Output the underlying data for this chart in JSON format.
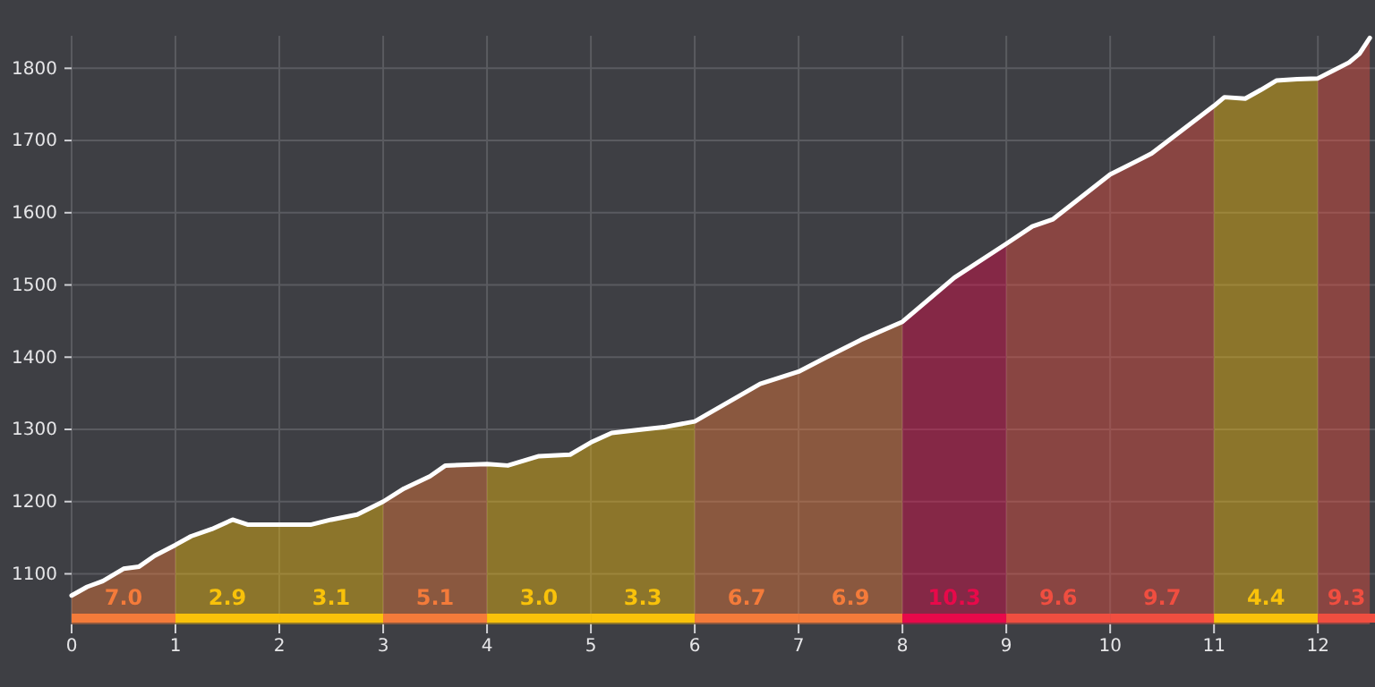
{
  "chart_data": {
    "type": "line",
    "x": [
      0,
      0.15,
      0.3,
      0.5,
      0.65,
      0.8,
      1,
      1.15,
      1.35,
      1.55,
      1.7,
      2,
      2.3,
      2.5,
      2.75,
      3,
      3.2,
      3.45,
      3.6,
      4,
      4.2,
      4.5,
      4.8,
      5,
      5.2,
      5.5,
      5.7,
      6,
      6.63,
      7,
      7.27,
      7.6,
      8,
      8.5,
      9,
      9.25,
      9.45,
      10,
      10.4,
      11,
      11.1,
      11.3,
      11.45,
      11.6,
      11.8,
      12,
      12.15,
      12.3,
      12.4,
      12.5
    ],
    "series": [
      {
        "color": "#ffffff",
        "values": [
          1070,
          1082,
          1090,
          1107,
          1110,
          1125,
          1140,
          1152,
          1162,
          1175,
          1168,
          1168,
          1168,
          1175,
          1182,
          1200,
          1218,
          1235,
          1250,
          1252,
          1250,
          1263,
          1265,
          1282,
          1295,
          1300,
          1303,
          1311,
          1363,
          1380,
          1400,
          1424,
          1449,
          1510,
          1557,
          1581,
          1591,
          1653,
          1682,
          1748,
          1760,
          1758,
          1770,
          1783,
          1785,
          1786,
          1797,
          1808,
          1820,
          1842
        ]
      }
    ],
    "xlim": [
      0,
      12.55
    ],
    "ylim": [
      1030,
      1845
    ],
    "xticks": [
      0,
      1,
      2,
      3,
      4,
      5,
      6,
      7,
      8,
      9,
      10,
      11,
      12
    ],
    "yticks": [
      1100,
      1200,
      1300,
      1400,
      1500,
      1600,
      1700,
      1800
    ],
    "grid": true,
    "marker": "none",
    "line_style": "solid",
    "bands": [
      {
        "axis": "x",
        "from": 0,
        "to": 1,
        "label": "7.0",
        "color": "#f47b3a"
      },
      {
        "axis": "x",
        "from": 1,
        "to": 2,
        "label": "2.9",
        "color": "#f9c20a"
      },
      {
        "axis": "x",
        "from": 2,
        "to": 3,
        "label": "3.1",
        "color": "#f9c20a"
      },
      {
        "axis": "x",
        "from": 3,
        "to": 4,
        "label": "5.1",
        "color": "#f47b3a"
      },
      {
        "axis": "x",
        "from": 4,
        "to": 5,
        "label": "3.0",
        "color": "#f9c20a"
      },
      {
        "axis": "x",
        "from": 5,
        "to": 6,
        "label": "3.3",
        "color": "#f9c20a"
      },
      {
        "axis": "x",
        "from": 6,
        "to": 7,
        "label": "6.7",
        "color": "#f47b3a"
      },
      {
        "axis": "x",
        "from": 7,
        "to": 8,
        "label": "6.9",
        "color": "#f47b3a"
      },
      {
        "axis": "x",
        "from": 8,
        "to": 9,
        "label": "10.3",
        "color": "#e8094a"
      },
      {
        "axis": "x",
        "from": 9,
        "to": 10,
        "label": "9.6",
        "color": "#f04e40"
      },
      {
        "axis": "x",
        "from": 10,
        "to": 11,
        "label": "9.7",
        "color": "#f04e40"
      },
      {
        "axis": "x",
        "from": 11,
        "to": 12,
        "label": "4.4",
        "color": "#f9c20a"
      },
      {
        "axis": "x",
        "from": 12,
        "to": 12.55,
        "label": "9.3",
        "color": "#f04e40"
      }
    ]
  }
}
